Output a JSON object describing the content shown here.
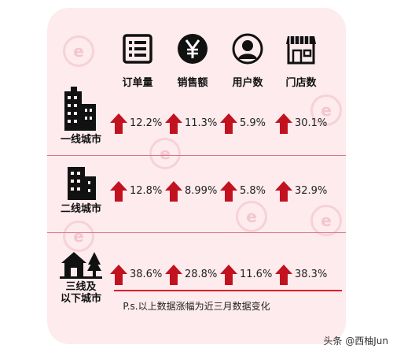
{
  "headers": [
    {
      "label": "订单量",
      "icon": "document-list-icon"
    },
    {
      "label": "销售额",
      "icon": "yen-icon"
    },
    {
      "label": "用户数",
      "icon": "user-icon"
    },
    {
      "label": "门店数",
      "icon": "store-icon"
    }
  ],
  "rows": [
    {
      "label": "一线城市",
      "icon": "skyscraper-icon",
      "values": [
        "12.2%",
        "11.3%",
        "5.9%",
        "30.1%"
      ]
    },
    {
      "label": "二线城市",
      "icon": "building-icon",
      "values": [
        "12.8%",
        "8.99%",
        "5.8%",
        "32.9%"
      ]
    },
    {
      "label": "三线及\n以下城市",
      "icon": "house-tree-icon",
      "values": [
        "38.6%",
        "28.8%",
        "11.6%",
        "38.3%"
      ]
    }
  ],
  "note": "P.s.以上数据涨幅为近三月数据变化",
  "credit": "头条 @西柚Jun",
  "colors": {
    "arrow": "#c2121f",
    "card": "#fdebed",
    "accent_line": "#d81f2c"
  }
}
